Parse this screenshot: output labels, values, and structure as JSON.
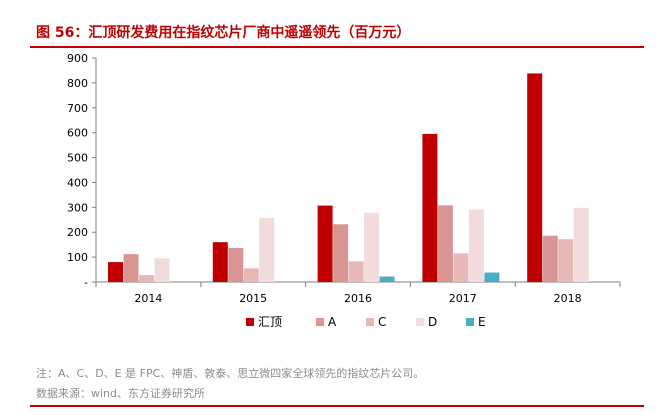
{
  "title": "图 56：汇顶研发费用在指纹芯片厂商中遥遥领先（百万元）",
  "note": "注：A、C、D、E 是 FPC、神盾、敦泰、思立微四家全球领先的指纹芯片公司。",
  "source": "数据来源：wind、东方证券研究所",
  "colors": {
    "accent": "#c00000"
  },
  "chart_data": {
    "type": "bar",
    "title": "图 56：汇顶研发费用在指纹芯片厂商中遥遥领先（百万元）",
    "categories": [
      "2014",
      "2015",
      "2016",
      "2017",
      "2018"
    ],
    "ylim": [
      0,
      900
    ],
    "yticks": [
      0,
      100,
      200,
      300,
      400,
      500,
      600,
      700,
      800,
      900
    ],
    "ytick_labels": [
      "-",
      "100",
      "200",
      "300",
      "400",
      "500",
      "600",
      "700",
      "800",
      "900"
    ],
    "grid": false,
    "legend_position": "bottom",
    "series": [
      {
        "name": "汇顶",
        "color": "#c00000",
        "values": [
          80,
          160,
          307,
          595,
          838
        ]
      },
      {
        "name": "A",
        "color": "#d99594",
        "values": [
          112,
          137,
          232,
          308,
          186
        ]
      },
      {
        "name": "C",
        "color": "#e6b9b8",
        "values": [
          28,
          55,
          83,
          115,
          172
        ]
      },
      {
        "name": "D",
        "color": "#f2dcdb",
        "values": [
          95,
          257,
          278,
          292,
          298
        ]
      },
      {
        "name": "E",
        "color": "#4bacc6",
        "values": [
          0,
          0,
          22,
          38,
          0
        ]
      }
    ]
  }
}
